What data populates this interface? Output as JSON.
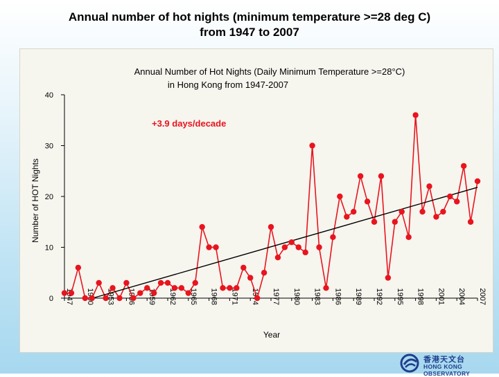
{
  "slide": {
    "title_line1": "Annual number of hot nights (minimum temperature >=28 deg C)",
    "title_line2": "from 1947 to 2007"
  },
  "logo": {
    "chinese": "香港天文台",
    "english": "HONG KONG OBSERVATORY",
    "brand_color": "#1f3e8c"
  },
  "chart_data": {
    "type": "line",
    "title_line1": "Annual Number of Hot Nights (Daily Minimum Temperature >=28°C)",
    "title_line2": "in Hong Kong from 1947-2007",
    "xlabel": "Year",
    "ylabel": "Number of HOT Nights",
    "annotation": "+3.9 days/decade",
    "ylim": [
      0,
      40
    ],
    "yticks": [
      0,
      10,
      20,
      30,
      40
    ],
    "xticks": [
      1947,
      1950,
      1953,
      1956,
      1959,
      1962,
      1965,
      1968,
      1971,
      1974,
      1977,
      1980,
      1983,
      1986,
      1989,
      1992,
      1995,
      1998,
      2001,
      2004,
      2007
    ],
    "grid": false,
    "series_color": "#e8141e",
    "trend_color": "#000000",
    "annotation_color": "#e8141e",
    "x": [
      1947,
      1948,
      1949,
      1950,
      1951,
      1952,
      1953,
      1954,
      1955,
      1956,
      1957,
      1958,
      1959,
      1960,
      1961,
      1962,
      1963,
      1964,
      1965,
      1966,
      1967,
      1968,
      1969,
      1970,
      1971,
      1972,
      1973,
      1974,
      1975,
      1976,
      1977,
      1978,
      1979,
      1980,
      1981,
      1982,
      1983,
      1984,
      1985,
      1986,
      1987,
      1988,
      1989,
      1990,
      1991,
      1992,
      1993,
      1994,
      1995,
      1996,
      1997,
      1998,
      1999,
      2000,
      2001,
      2002,
      2003,
      2004,
      2005,
      2006,
      2007
    ],
    "values": [
      1,
      1,
      6,
      0,
      0,
      3,
      0,
      2,
      0,
      3,
      0,
      1,
      2,
      1,
      3,
      3,
      2,
      2,
      1,
      3,
      14,
      10,
      10,
      2,
      2,
      2,
      6,
      4,
      0,
      5,
      14,
      8,
      10,
      11,
      10,
      9,
      30,
      10,
      2,
      12,
      20,
      16,
      17,
      24,
      19,
      15,
      24,
      4,
      15,
      17,
      12,
      36,
      17,
      22,
      16,
      17,
      20,
      19,
      26,
      15,
      23
    ],
    "trend": {
      "start": [
        1947,
        -1.6
      ],
      "end": [
        2007,
        21.8
      ]
    }
  }
}
